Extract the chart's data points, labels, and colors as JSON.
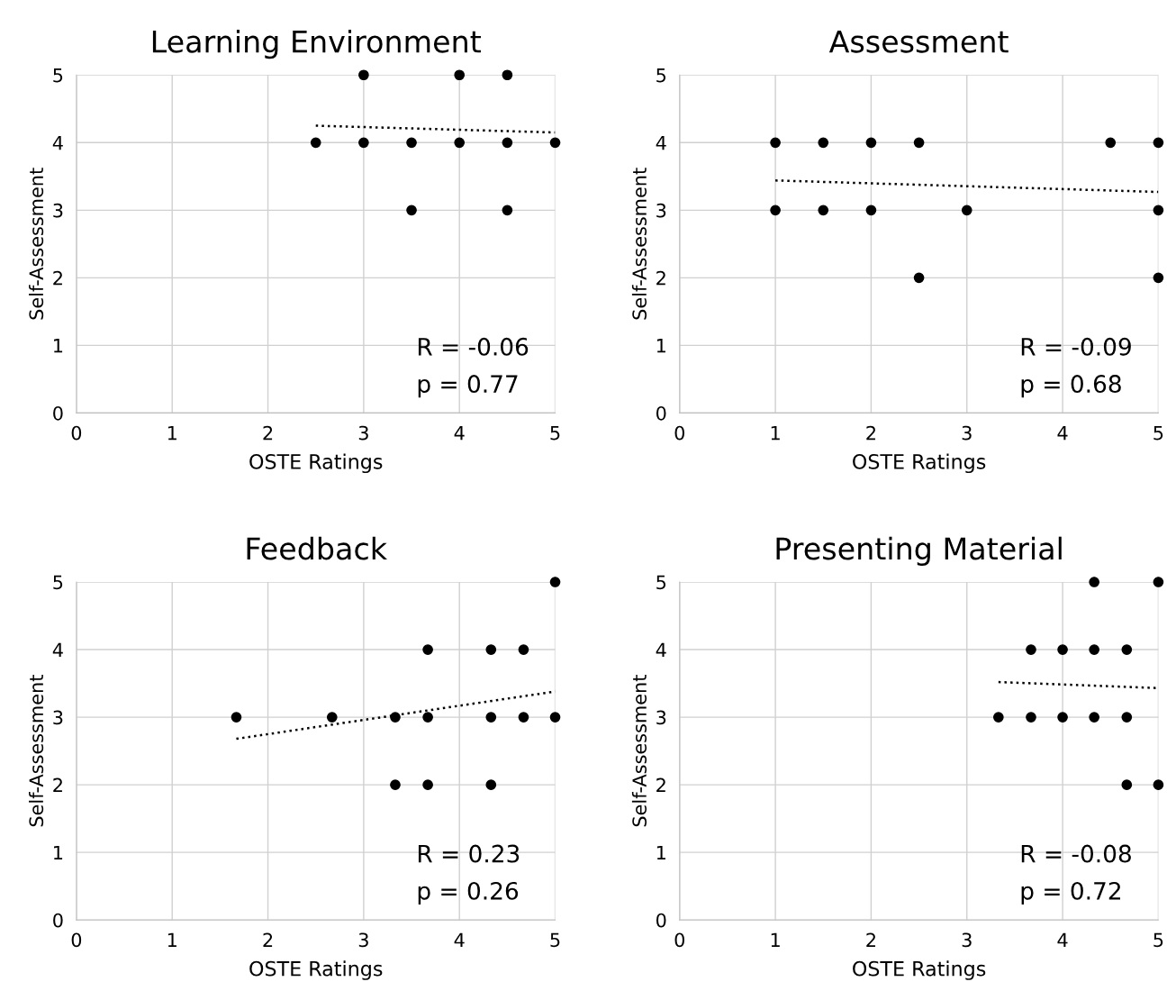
{
  "chart_data": [
    {
      "type": "scatter",
      "title": "Learning Environment",
      "xlabel": "OSTE Ratings",
      "ylabel": "Self-Assessment",
      "xlim": [
        0,
        5
      ],
      "ylim": [
        0,
        5
      ],
      "xticks": [
        0,
        1,
        2,
        3,
        4,
        5
      ],
      "yticks": [
        0,
        1,
        2,
        3,
        4,
        5
      ],
      "grid": true,
      "annotations": [
        "R = -0.06",
        "p = 0.77"
      ],
      "series": [
        {
          "color": "#000000",
          "marker": "circle",
          "x": [
            2.5,
            3,
            3,
            3.5,
            3.5,
            4,
            4,
            4.5,
            4.5,
            4.5,
            5
          ],
          "values": [
            4,
            5,
            4,
            4,
            3,
            5,
            4,
            5,
            4,
            3,
            4
          ]
        },
        {
          "type": "line",
          "color": "#000000",
          "marker": "none",
          "line_style": "dotted",
          "x": [
            2.5,
            5
          ],
          "values": [
            4.25,
            4.15
          ]
        }
      ]
    },
    {
      "type": "scatter",
      "title": "Assessment",
      "xlabel": "OSTE Ratings",
      "ylabel": "Self-Assessment",
      "xlim": [
        0,
        5
      ],
      "ylim": [
        0,
        5
      ],
      "xticks": [
        0,
        1,
        2,
        3,
        4,
        5
      ],
      "yticks": [
        0,
        1,
        2,
        3,
        4,
        5
      ],
      "grid": true,
      "annotations": [
        "R = -0.09",
        "p = 0.68"
      ],
      "series": [
        {
          "color": "#000000",
          "marker": "circle",
          "x": [
            1,
            1.5,
            2,
            2.5,
            4.5,
            5,
            1,
            1.5,
            2,
            3,
            5,
            2.5,
            5
          ],
          "values": [
            4,
            4,
            4,
            4,
            4,
            4,
            3,
            3,
            3,
            3,
            3,
            2,
            2
          ]
        },
        {
          "type": "line",
          "color": "#000000",
          "marker": "none",
          "line_style": "dotted",
          "x": [
            1,
            5
          ],
          "values": [
            3.44,
            3.27
          ]
        }
      ]
    },
    {
      "type": "scatter",
      "title": "Feedback",
      "xlabel": "OSTE Ratings",
      "ylabel": "Self-Assessment",
      "xlim": [
        0,
        5
      ],
      "ylim": [
        0,
        5
      ],
      "xticks": [
        0,
        1,
        2,
        3,
        4,
        5
      ],
      "yticks": [
        0,
        1,
        2,
        3,
        4,
        5
      ],
      "grid": true,
      "annotations": [
        "R = 0.23",
        "p = 0.26"
      ],
      "series": [
        {
          "color": "#000000",
          "marker": "circle",
          "x": [
            1.67,
            2.67,
            3.33,
            3.33,
            3.67,
            3.67,
            3.67,
            4.33,
            4.33,
            4.33,
            4.67,
            4.67,
            5,
            5
          ],
          "values": [
            3,
            3,
            3,
            2,
            4,
            3,
            2,
            4,
            3,
            2,
            4,
            3,
            5,
            3
          ]
        },
        {
          "type": "line",
          "color": "#000000",
          "marker": "none",
          "line_style": "dotted",
          "x": [
            1.67,
            5
          ],
          "values": [
            2.68,
            3.38
          ]
        }
      ]
    },
    {
      "type": "scatter",
      "title": "Presenting Material",
      "xlabel": "OSTE Ratings",
      "ylabel": "Self-Assessment",
      "xlim": [
        0,
        5
      ],
      "ylim": [
        0,
        5
      ],
      "xticks": [
        0,
        1,
        2,
        3,
        4,
        5
      ],
      "yticks": [
        0,
        1,
        2,
        3,
        4,
        5
      ],
      "grid": true,
      "annotations": [
        "R = -0.08",
        "p = 0.72"
      ],
      "series": [
        {
          "color": "#000000",
          "marker": "circle",
          "x": [
            3.33,
            3.67,
            3.67,
            4,
            4,
            4.33,
            4.33,
            4.33,
            4.67,
            4.67,
            4.67,
            5,
            5
          ],
          "values": [
            3,
            4,
            3,
            4,
            3,
            5,
            4,
            3,
            4,
            3,
            2,
            5,
            2
          ]
        },
        {
          "type": "line",
          "color": "#000000",
          "marker": "none",
          "line_style": "dotted",
          "x": [
            3.33,
            5
          ],
          "values": [
            3.52,
            3.43
          ]
        }
      ]
    }
  ]
}
